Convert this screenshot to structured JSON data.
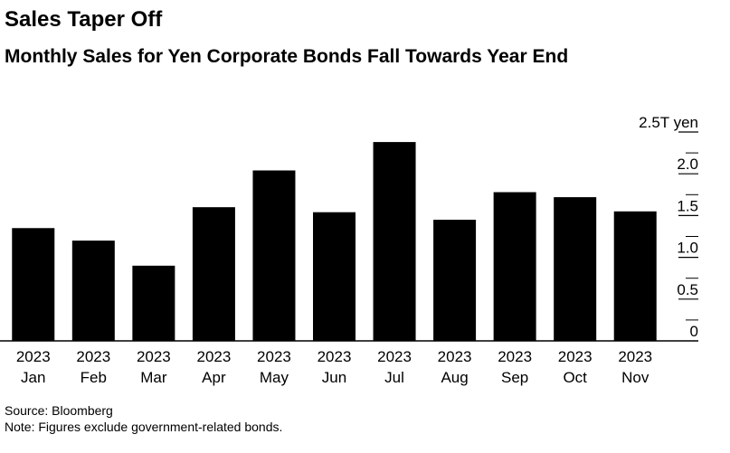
{
  "title": "Sales Taper Off",
  "subtitle": "Monthly Sales for Yen Corporate Bonds Fall Towards Year End",
  "source": "Source: Bloomberg",
  "note": "Note: Figures exclude government-related bonds.",
  "chart_data": {
    "type": "bar",
    "categories": [
      "Jan",
      "Feb",
      "Mar",
      "Apr",
      "May",
      "Jun",
      "Jul",
      "Aug",
      "Sep",
      "Oct",
      "Nov"
    ],
    "category_year": "2023",
    "values": [
      1.35,
      1.2,
      0.9,
      1.6,
      2.04,
      1.54,
      2.38,
      1.45,
      1.78,
      1.72,
      1.55
    ],
    "ylim": [
      0,
      2.5
    ],
    "yticks": [
      0,
      0.5,
      1.0,
      1.5,
      2.0,
      2.5
    ],
    "ytick_labels": [
      "0",
      "0.5",
      "1.0",
      "1.5",
      "2.0",
      "2.5T yen"
    ],
    "ylabel": "",
    "xlabel": "",
    "grid": false,
    "bar_color": "#000000",
    "axis_color": "#000000"
  }
}
